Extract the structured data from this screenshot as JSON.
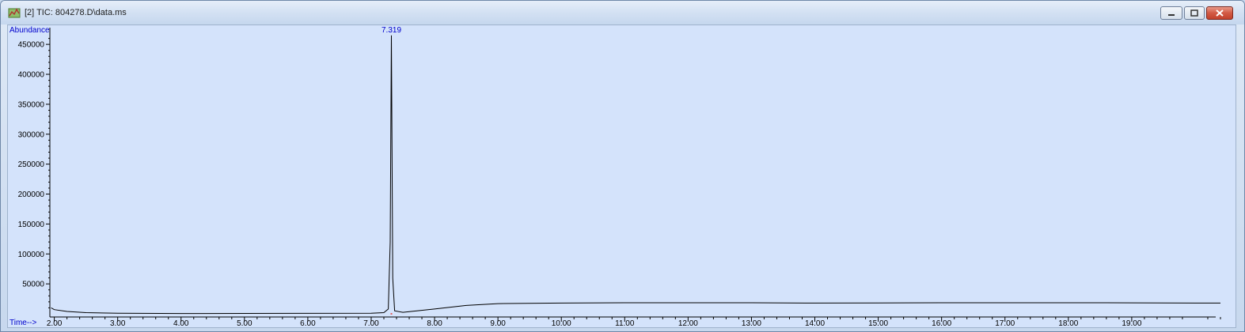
{
  "window": {
    "title": "[2] TIC: 804278.D\\data.ms",
    "app_icon": "chromatogram-app-icon",
    "controls": [
      "minimize-icon",
      "maximize-icon",
      "close-icon"
    ],
    "colors": {
      "plot_background": "#d4e3fb",
      "axis_label": "#0000cc",
      "trace": "#000000",
      "peak_fill": "#e06060"
    }
  },
  "chart_data": {
    "type": "line",
    "title": "",
    "ylabel": "Abundance",
    "xlabel": "Time-->",
    "xlim": [
      1.93,
      20.45
    ],
    "ylim": [
      0,
      470000
    ],
    "x_ticks": [
      2.0,
      3.0,
      4.0,
      5.0,
      6.0,
      7.0,
      8.0,
      9.0,
      10.0,
      11.0,
      12.0,
      13.0,
      14.0,
      15.0,
      16.0,
      17.0,
      18.0,
      19.0
    ],
    "x_tick_labels": [
      "2.00",
      "3.00",
      "4.00",
      "5.00",
      "6.00",
      "7.00",
      "8.00",
      "9.00",
      "10.00",
      "11.00",
      "12.00",
      "13.00",
      "14.00",
      "15.00",
      "16.00",
      "17.00",
      "18.00",
      "19.00"
    ],
    "y_ticks": [
      50000,
      100000,
      150000,
      200000,
      250000,
      300000,
      350000,
      400000,
      450000
    ],
    "y_tick_labels": [
      "50000",
      "100000",
      "150000",
      "200000",
      "250000",
      "300000",
      "350000",
      "400000",
      "450000"
    ],
    "grid": false,
    "series": [
      {
        "x": [
          1.95,
          2.0,
          2.2,
          2.5,
          3.0,
          4.0,
          5.0,
          6.0,
          7.0,
          7.2,
          7.27,
          7.3,
          7.319,
          7.34,
          7.37,
          7.5,
          8.0,
          8.5,
          9.0,
          10.0,
          11.0,
          12.0,
          13.0,
          14.0,
          15.0,
          16.0,
          17.0,
          18.0,
          19.0,
          20.0,
          20.4
        ],
        "y": [
          10000,
          7000,
          4000,
          2000,
          1000,
          500,
          600,
          800,
          1000,
          2000,
          8000,
          120000,
          465000,
          60000,
          5000,
          2500,
          8000,
          14000,
          17000,
          18000,
          18500,
          18500,
          18500,
          18000,
          18200,
          18500,
          18500,
          18500,
          18300,
          18000,
          18000
        ]
      }
    ],
    "peak_labels": [
      {
        "x": 7.319,
        "text": "7.319"
      }
    ]
  }
}
